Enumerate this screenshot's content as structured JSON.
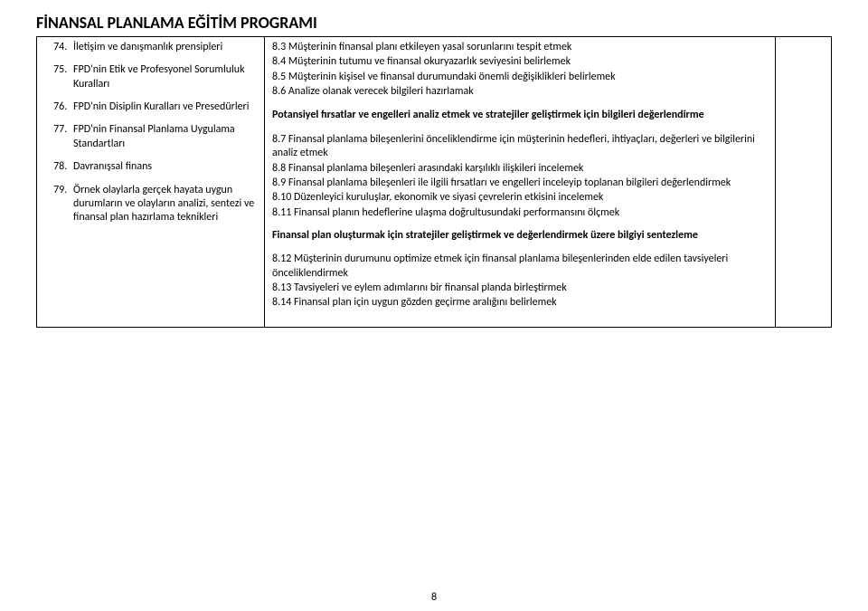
{
  "title": "FİNANSAL PLANLAMA EĞİTİM PROGRAMI",
  "list_start": 74,
  "left_items": [
    "İletişim ve danışmanlık prensipleri",
    "FPD'nin Etik ve Profesyonel Sorumluluk Kuralları",
    "FPD'nin Disiplin Kuralları ve Presedürleri",
    "FPD'nin Finansal Planlama Uygulama Standartları",
    "Davranışsal finans",
    "Örnek olaylarla gerçek hayata uygun durumların ve olayların analizi, sentezi ve finansal plan hazırlama teknikleri"
  ],
  "mid": {
    "intro": [
      "8.3 Müşterinin finansal planı etkileyen yasal sorunlarını tespit etmek",
      "8.4 Müşterinin tutumu ve finansal okuryazarlık seviyesini belirlemek",
      "8.5 Müşterinin kişisel ve finansal durumundaki önemli değişiklikleri belirlemek",
      "8.6 Analize olanak verecek bilgileri hazırlamak"
    ],
    "section2_head": "Potansiyel fırsatlar ve engelleri analiz etmek ve stratejiler geliştirmek için bilgileri değerlendirme",
    "section2_body": [
      "8.7 Finansal planlama bileşenlerini önceliklendirme için müşterinin hedefleri, ihtiyaçları, değerleri ve bilgilerini analiz etmek",
      "8.8 Finansal planlama bileşenleri arasındaki karşılıklı ilişkileri incelemek",
      "8.9 Finansal planlama bileşenleri ile ilgili fırsatları ve engelleri inceleyip toplanan bilgileri değerlendirmek",
      "8.10 Düzenleyici kuruluşlar, ekonomik ve siyasi çevrelerin etkisini incelemek",
      "8.11 Finansal planın hedeflerine ulaşma doğrultusundaki performansını ölçmek"
    ],
    "section3_head": "Finansal plan oluşturmak için stratejiler geliştirmek ve değerlendirmek üzere bilgiyi sentezleme",
    "section3_body": [
      "8.12 Müşterinin durumunu optimize etmek için finansal planlama bileşenlerinden elde edilen tavsiyeleri önceliklendirmek",
      "8.13 Tavsiyeleri ve eylem adımlarını bir finansal planda birleştirmek",
      "8.14 Finansal plan için uygun gözden geçirme aralığını belirlemek"
    ]
  },
  "page_number": "8"
}
